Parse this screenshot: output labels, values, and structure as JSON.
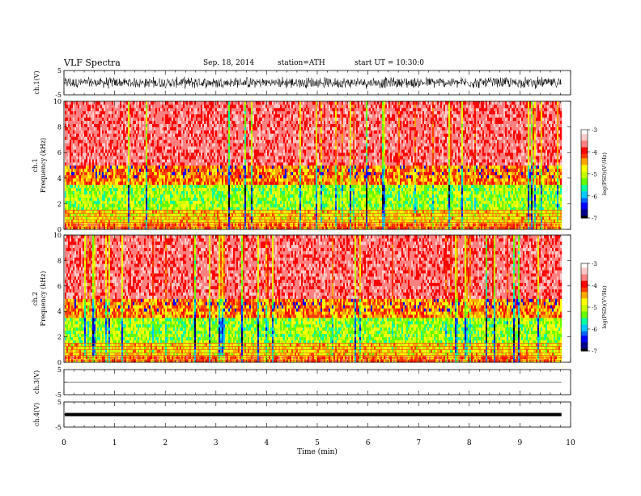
{
  "header": {
    "title": "VLF  Spectra",
    "date": "Sep. 18,  2014",
    "station": "station=ATH",
    "start": "start  UT  =   10:30:0"
  },
  "colors": {
    "spectro_bands": [
      "#000000",
      "#00008b",
      "#0000ff",
      "#0064ff",
      "#00c8ff",
      "#00ffa0",
      "#64ff00",
      "#c8ff00",
      "#ffff00",
      "#ffa500",
      "#ff3c00",
      "#ff0000",
      "#ff8080",
      "#ffc8c8",
      "#ffffff"
    ],
    "trace": "#000000"
  },
  "chart_data": [
    {
      "type": "line",
      "name": "ch1-waveform",
      "ylabel": "ch.1(V)",
      "ylim": [
        -5,
        5
      ],
      "yticks": [
        "5",
        "-5"
      ],
      "x_range_min": [
        0,
        9.8
      ],
      "description_of_values": "noisy signal oscillating roughly between -2 and 2 V",
      "y_amplitude": 2
    },
    {
      "type": "heatmap",
      "name": "ch1-spectrogram",
      "ylabel": "ch.1\nFrequency (kHz)",
      "ylim": [
        0,
        10
      ],
      "yticks": [
        "0",
        "2",
        "4",
        "6",
        "8",
        "10"
      ],
      "xlim": [
        0,
        9.8
      ],
      "colorbar": {
        "label": "log(PSD)(V²/Hz)",
        "ticks": [
          "-3",
          "-4",
          "-5",
          "-6",
          "-7"
        ],
        "range": [
          -7,
          -3
        ]
      },
      "bands_khz": [
        {
          "from": 0,
          "to": 0.6,
          "level": "mixed-low"
        },
        {
          "from": 0.6,
          "to": 1.6,
          "level": "green-cyan"
        },
        {
          "from": 1.6,
          "to": 3.5,
          "level": "cyan-green"
        },
        {
          "from": 3.5,
          "to": 5,
          "level": "green-yellow"
        },
        {
          "from": 5,
          "to": 10,
          "level": "red"
        }
      ]
    },
    {
      "type": "heatmap",
      "name": "ch2-spectrogram",
      "ylabel": "ch.2\nFrequency (kHz)",
      "ylim": [
        0,
        10
      ],
      "yticks": [
        "0",
        "2",
        "4",
        "6",
        "8",
        "10"
      ],
      "xlim": [
        0,
        9.8
      ],
      "colorbar": {
        "label": "log(PSD)(V²/Hz)",
        "ticks": [
          "-3",
          "-4",
          "-5",
          "-6",
          "-7"
        ],
        "range": [
          -7,
          -3
        ]
      }
    },
    {
      "type": "line",
      "name": "ch3-waveform",
      "ylabel": "ch.3(V)",
      "ylim": [
        -5,
        5
      ],
      "yticks": [
        "5",
        "-5"
      ],
      "level": 0
    },
    {
      "type": "line",
      "name": "ch4-waveform",
      "ylabel": "ch.4(V)",
      "ylim": [
        -5,
        5
      ],
      "yticks": [
        "5",
        "-5"
      ],
      "level": 0
    }
  ],
  "xaxis": {
    "label": "Time  (min)",
    "ticks": [
      "0",
      "1",
      "2",
      "3",
      "4",
      "5",
      "6",
      "7",
      "8",
      "9",
      "10"
    ],
    "xlim": [
      0,
      10
    ]
  }
}
